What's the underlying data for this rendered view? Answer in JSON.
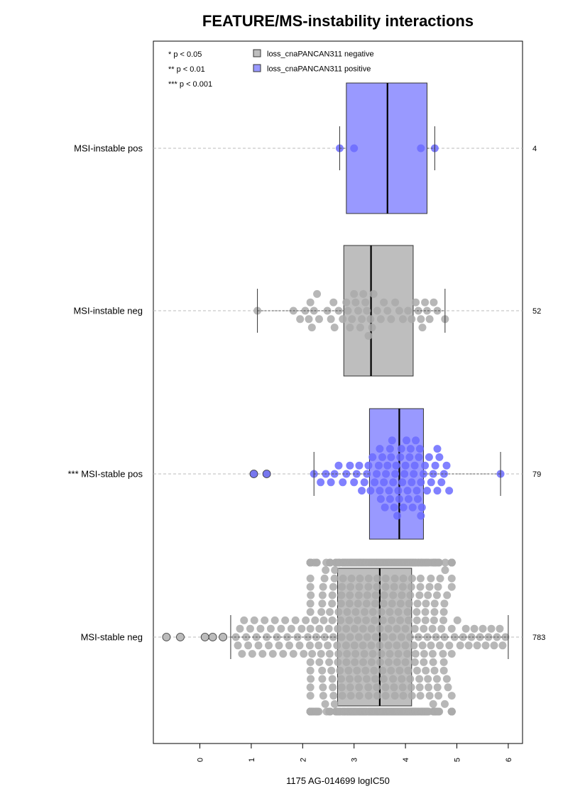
{
  "chart_data": {
    "type": "box",
    "title": "FEATURE/MS-instability interactions",
    "xlabel": "1175 AG-014699 logIC50",
    "ylabel": "",
    "xlim": [
      -0.8,
      6.3
    ],
    "x_ticks": [
      "0",
      "1",
      "2",
      "3",
      "4",
      "5",
      "6"
    ],
    "orientation": "horizontal",
    "grid": "dashed horizontal line per category",
    "legend": {
      "placement": "top",
      "significance": [
        "* p < 0.05",
        "** p < 0.01",
        "*** p < 0.001"
      ],
      "entries": [
        {
          "label": "loss_cnaPANCAN311 negative",
          "color": "#bebebe"
        },
        {
          "label": "loss_cnaPANCAN311 positive",
          "color": "#9999ff"
        }
      ]
    },
    "colors": {
      "negative_box": "#bebebe",
      "positive_box": "#9999ff",
      "negative_points": "#aaaaaa",
      "positive_points": "#6b6bff",
      "outlier_fill_neg": "#bbbbbb",
      "outlier_fill_pos": "#7777ee"
    },
    "groups": [
      {
        "label": "MSI-instable pos",
        "count": "4",
        "status": "positive",
        "q1": 2.85,
        "median": 3.65,
        "q3": 4.42,
        "whisker_low": 2.72,
        "whisker_high": 4.57,
        "points": [
          2.72,
          3.0,
          4.3,
          4.57
        ],
        "outliers": []
      },
      {
        "label": "MSI-instable neg",
        "count": "52",
        "status": "negative",
        "q1": 2.8,
        "median": 3.33,
        "q3": 4.15,
        "whisker_low": 1.12,
        "whisker_high": 4.77,
        "points": [
          1.12,
          1.82,
          1.95,
          2.05,
          2.12,
          2.15,
          2.18,
          2.22,
          2.28,
          2.32,
          2.48,
          2.55,
          2.6,
          2.62,
          2.7,
          2.78,
          2.85,
          2.88,
          2.92,
          2.96,
          3.0,
          3.03,
          3.08,
          3.12,
          3.15,
          3.18,
          3.22,
          3.25,
          3.28,
          3.32,
          3.35,
          3.38,
          3.45,
          3.52,
          3.58,
          3.65,
          3.72,
          3.8,
          3.88,
          3.95,
          4.05,
          4.12,
          4.2,
          4.25,
          4.3,
          4.33,
          4.38,
          4.42,
          4.47,
          4.55,
          4.62,
          4.77
        ],
        "outliers": []
      },
      {
        "label": "*** MSI-stable pos",
        "count": "79",
        "status": "positive",
        "q1": 3.3,
        "median": 3.88,
        "q3": 4.35,
        "whisker_low": 2.22,
        "whisker_high": 5.85,
        "points": [
          2.22,
          2.35,
          2.45,
          2.55,
          2.62,
          2.7,
          2.78,
          2.85,
          2.92,
          3.0,
          3.05,
          3.1,
          3.15,
          3.2,
          3.25,
          3.28,
          3.32,
          3.36,
          3.4,
          3.44,
          3.48,
          3.5,
          3.52,
          3.55,
          3.58,
          3.6,
          3.62,
          3.65,
          3.68,
          3.7,
          3.72,
          3.74,
          3.76,
          3.78,
          3.8,
          3.82,
          3.84,
          3.86,
          3.88,
          3.9,
          3.92,
          3.94,
          3.96,
          3.98,
          4.0,
          4.02,
          4.04,
          4.06,
          4.08,
          4.1,
          4.12,
          4.14,
          4.16,
          4.18,
          4.2,
          4.22,
          4.24,
          4.26,
          4.28,
          4.3,
          4.32,
          4.35,
          4.38,
          4.42,
          4.46,
          4.5,
          4.54,
          4.58,
          4.62,
          4.66,
          4.7,
          4.75,
          4.8,
          4.85,
          4.62,
          4.3,
          3.5,
          3.7,
          5.85
        ],
        "outliers": [
          1.05,
          1.3
        ]
      },
      {
        "label": "MSI-stable neg",
        "count": "783",
        "status": "negative",
        "q1": 2.68,
        "median": 3.5,
        "q3": 4.12,
        "whisker_low": 0.6,
        "whisker_high": 6.0,
        "points_summary": "783 points spanning roughly 0.6 to 6.0, densest between 2.2 and 4.9",
        "outliers": [
          -0.65,
          -0.38,
          0.1,
          0.25,
          0.45
        ]
      }
    ]
  }
}
